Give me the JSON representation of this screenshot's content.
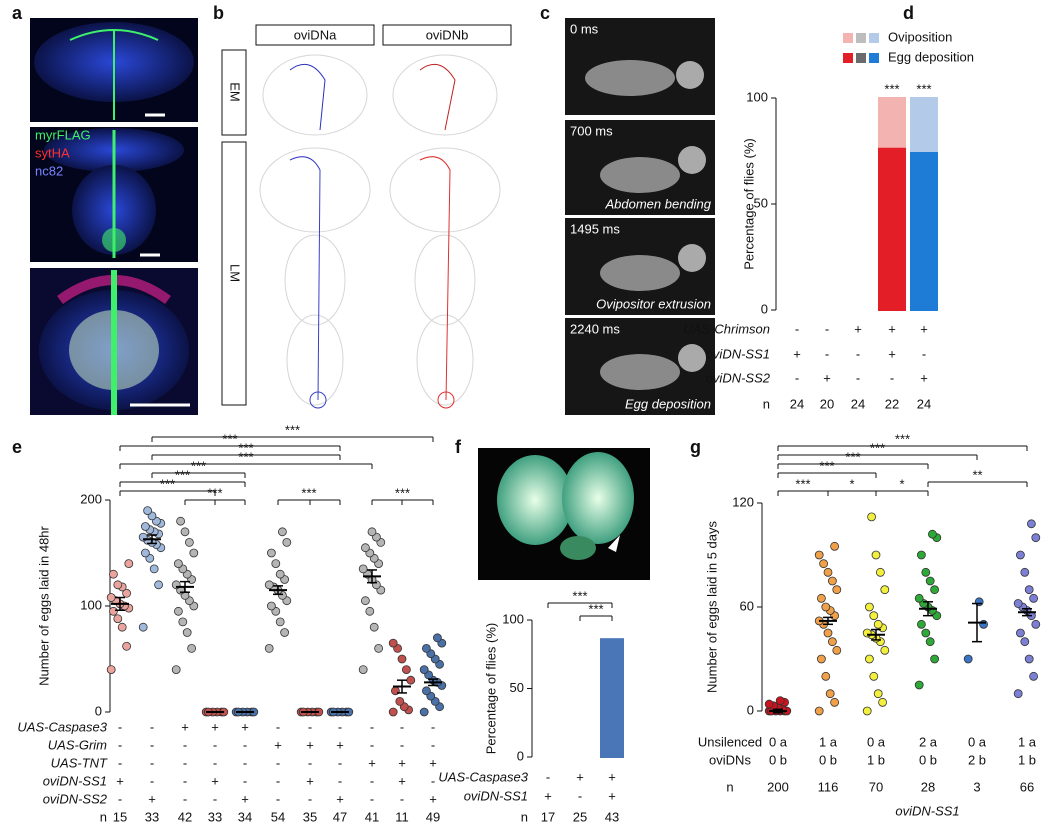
{
  "panel_labels": [
    "a",
    "b",
    "c",
    "d",
    "e",
    "f",
    "g"
  ],
  "panel_a": {
    "labels": [
      "myrFLAG",
      "sytHA",
      "nc82"
    ]
  },
  "panel_b": {
    "columns": [
      "oviDNa",
      "oviDNb"
    ],
    "rows": [
      "EM",
      "LM"
    ]
  },
  "panel_c": {
    "times": [
      "0 ms",
      "700 ms",
      "1495 ms",
      "2240 ms"
    ],
    "captions": [
      "Abdomen bending",
      "Ovipositor extrusion",
      "Egg deposition"
    ]
  },
  "chart_data": [
    {
      "type": "bar",
      "stacked": true,
      "ylabel": "Percentage of flies (%)",
      "ylim": [
        0,
        100
      ],
      "yticks": [
        0,
        50,
        100
      ],
      "series": [
        {
          "name": "Egg deposition",
          "colors": [
            "#f3b3b1",
            "#b3cbe8",
            "#bdbdbd",
            "#e41e26",
            "#1e7bd6"
          ],
          "legend_colors": [
            "#e41e26",
            "#6b6b6b",
            "#1e7bd6"
          ],
          "values": [
            0,
            0,
            0,
            77,
            75
          ]
        },
        {
          "name": "Oviposition",
          "colors": [
            "#f3b3b1",
            "#b3cbe8",
            "#bdbdbd",
            "#f3b3b1",
            "#b3cbe8"
          ],
          "legend_colors": [
            "#f3b3b1",
            "#bdbdbd",
            "#b3cbe8"
          ],
          "values": [
            0,
            0,
            0,
            23,
            25
          ]
        }
      ],
      "annotations": [
        {
          "bar": 3,
          "label": "***"
        },
        {
          "bar": 4,
          "label": "***"
        }
      ],
      "rows": [
        {
          "label": "UAS-Chrimson",
          "values": [
            "-",
            "-",
            "+",
            "+",
            "+"
          ]
        },
        {
          "label": "oviDN-SS1",
          "values": [
            "+",
            "-",
            "-",
            "+",
            "-"
          ]
        },
        {
          "label": "oviDN-SS2",
          "values": [
            "-",
            "+",
            "-",
            "-",
            "+"
          ]
        }
      ],
      "n_label": "n",
      "n": [
        24,
        20,
        24,
        22,
        24
      ]
    },
    {
      "type": "dot",
      "ylabel": "Number of eggs laid in 48hr",
      "ylim": [
        0,
        200
      ],
      "yticks": [
        0,
        100,
        200
      ],
      "groups": [
        {
          "color": "#eba39d",
          "points": [
            40,
            62,
            80,
            88,
            95,
            98,
            100,
            102,
            105,
            108,
            112,
            118,
            120,
            130,
            140
          ],
          "mean": 102,
          "sem": 6
        },
        {
          "color": "#9fb8dc",
          "points": [
            80,
            120,
            135,
            145,
            150,
            155,
            158,
            160,
            162,
            165,
            168,
            170,
            172,
            175,
            178,
            180,
            185,
            190
          ],
          "mean": 163,
          "sem": 4
        },
        {
          "color": "#b5b5b5",
          "points": [
            40,
            60,
            75,
            85,
            95,
            100,
            105,
            110,
            115,
            120,
            125,
            130,
            135,
            140,
            150,
            160,
            170,
            180
          ],
          "mean": 118,
          "sem": 5
        },
        {
          "color": "#c0504d",
          "points": [
            0,
            0,
            0,
            0,
            0,
            0
          ],
          "mean": 0,
          "sem": 0
        },
        {
          "color": "#4a70a8",
          "points": [
            0,
            0,
            0,
            0,
            0,
            0
          ],
          "mean": 0,
          "sem": 0
        },
        {
          "color": "#b5b5b5",
          "points": [
            60,
            75,
            85,
            95,
            100,
            105,
            110,
            115,
            118,
            120,
            125,
            130,
            140,
            150,
            160,
            170
          ],
          "mean": 115,
          "sem": 4
        },
        {
          "color": "#c0504d",
          "points": [
            0,
            0,
            0,
            0,
            0,
            0
          ],
          "mean": 0,
          "sem": 0
        },
        {
          "color": "#4a70a8",
          "points": [
            0,
            0,
            0,
            0,
            0,
            0
          ],
          "mean": 0,
          "sem": 0
        },
        {
          "color": "#b5b5b5",
          "points": [
            40,
            60,
            80,
            95,
            105,
            115,
            120,
            125,
            130,
            135,
            140,
            145,
            150,
            155,
            160,
            165,
            170
          ],
          "mean": 128,
          "sem": 6
        },
        {
          "color": "#c0504d",
          "points": [
            0,
            2,
            5,
            10,
            20,
            30,
            40,
            50,
            60,
            65
          ],
          "mean": 24,
          "sem": 6
        },
        {
          "color": "#4a70a8",
          "points": [
            0,
            5,
            10,
            15,
            20,
            25,
            28,
            30,
            35,
            40,
            45,
            50,
            55,
            60,
            65,
            70
          ],
          "mean": 28,
          "sem": 3
        }
      ],
      "rows": [
        {
          "label": "UAS-Caspase3",
          "values": [
            "-",
            "-",
            "+",
            "+",
            "+",
            "-",
            "-",
            "-",
            "-",
            "-",
            "-"
          ]
        },
        {
          "label": "UAS-Grim",
          "values": [
            "-",
            "-",
            "-",
            "-",
            "-",
            "+",
            "+",
            "+",
            "-",
            "-",
            "-"
          ]
        },
        {
          "label": "UAS-TNT",
          "values": [
            "-",
            "-",
            "-",
            "-",
            "-",
            "-",
            "-",
            "-",
            "+",
            "+",
            "+"
          ]
        },
        {
          "label": "oviDN-SS1",
          "values": [
            "+",
            "-",
            "-",
            "+",
            "-",
            "-",
            "+",
            "-",
            "-",
            "+",
            "-"
          ]
        },
        {
          "label": "oviDN-SS2",
          "values": [
            "-",
            "+",
            "-",
            "-",
            "+",
            "-",
            "-",
            "+",
            "-",
            "-",
            "+"
          ]
        }
      ],
      "n_label": "n",
      "n": [
        15,
        33,
        42,
        33,
        34,
        54,
        35,
        47,
        41,
        11,
        49
      ],
      "comparisons": [
        {
          "groups": [
            1,
            10
          ],
          "label": "***"
        },
        {
          "groups": [
            0,
            7
          ],
          "label": "***"
        },
        {
          "groups": [
            1,
            7
          ],
          "label": "***"
        },
        {
          "groups": [
            0,
            8
          ],
          "label": "***"
        },
        {
          "groups": [
            1,
            4
          ],
          "label": "***"
        },
        {
          "groups": [
            0,
            4
          ],
          "label": "***"
        },
        {
          "groups": [
            0,
            3
          ],
          "label": "***"
        },
        {
          "groups": [
            2,
            3,
            4
          ],
          "label": "***"
        },
        {
          "groups": [
            5,
            6,
            7
          ],
          "label": "***"
        },
        {
          "groups": [
            8,
            9,
            10
          ],
          "label": "***"
        }
      ]
    },
    {
      "type": "bar",
      "stacked": false,
      "ylabel": "Percentage of flies (%)",
      "ylim": [
        0,
        100
      ],
      "yticks": [
        0,
        50,
        100
      ],
      "series": [
        {
          "colors": [
            "#b3cbe8",
            "#bdbdbd",
            "#4a76b8"
          ],
          "values": [
            0,
            0,
            86
          ]
        }
      ],
      "rows": [
        {
          "label": "UAS-Caspase3",
          "values": [
            "-",
            "+",
            "+"
          ]
        },
        {
          "label": "oviDN-SS1",
          "values": [
            "+",
            "-",
            "+"
          ]
        }
      ],
      "n_label": "n",
      "n": [
        17,
        25,
        43
      ],
      "comparisons": [
        {
          "groups": [
            0,
            2
          ],
          "label": "***"
        },
        {
          "groups": [
            1,
            2
          ],
          "label": "***"
        }
      ]
    },
    {
      "type": "dot",
      "ylabel": "Number of eggs laid in 5 days",
      "xlabel": "oviDN-SS1",
      "ylim": [
        0,
        120
      ],
      "yticks": [
        0,
        60,
        120
      ],
      "groups": [
        {
          "color": "#c8141e",
          "points": [
            0,
            0,
            0,
            0,
            0,
            0,
            1,
            2,
            3,
            4,
            5,
            6
          ],
          "mean": 0,
          "sem": 1
        },
        {
          "color": "#f0a048",
          "points": [
            0,
            5,
            10,
            20,
            30,
            35,
            40,
            45,
            50,
            52,
            55,
            58,
            60,
            65,
            70,
            75,
            80,
            85,
            90,
            95
          ],
          "mean": 52,
          "sem": 2
        },
        {
          "color": "#f2f03c",
          "points": [
            0,
            5,
            10,
            20,
            30,
            35,
            40,
            42,
            44,
            45,
            48,
            50,
            55,
            60,
            70,
            80,
            90,
            112
          ],
          "mean": 44,
          "sem": 3
        },
        {
          "color": "#2ea836",
          "points": [
            15,
            30,
            40,
            45,
            50,
            55,
            58,
            60,
            62,
            65,
            70,
            75,
            80,
            90,
            100,
            102
          ],
          "mean": 59,
          "sem": 4
        },
        {
          "color": "#3a74c4",
          "points": [
            30,
            50,
            63
          ],
          "mean": 51,
          "sem": 11
        },
        {
          "color": "#7c80d4",
          "points": [
            10,
            20,
            30,
            40,
            45,
            50,
            55,
            58,
            60,
            62,
            65,
            70,
            80,
            90,
            100,
            108
          ],
          "mean": 57,
          "sem": 2
        }
      ],
      "rows": [
        {
          "label": [
            "Unsilenced",
            "oviDNs"
          ],
          "values": [
            [
              "0 a",
              "0 b"
            ],
            [
              "1 a",
              "0 b"
            ],
            [
              "0 a",
              "1 b"
            ],
            [
              "2 a",
              "0 b"
            ],
            [
              "0 a",
              "2 b"
            ],
            [
              "1 a",
              "1 b"
            ]
          ]
        }
      ],
      "n_label": "n",
      "n": [
        200,
        116,
        70,
        28,
        3,
        66
      ],
      "comparisons": [
        {
          "groups": [
            0,
            5
          ],
          "label": "***"
        },
        {
          "groups": [
            0,
            4
          ],
          "label": "***"
        },
        {
          "groups": [
            0,
            3
          ],
          "label": "***"
        },
        {
          "groups": [
            0,
            2
          ],
          "label": "***"
        },
        {
          "groups": [
            0,
            1
          ],
          "label": "***"
        },
        {
          "groups": [
            1,
            2
          ],
          "label": "*"
        },
        {
          "groups": [
            2,
            3
          ],
          "label": "*"
        },
        {
          "groups": [
            3,
            5
          ],
          "label": "**"
        }
      ]
    }
  ]
}
